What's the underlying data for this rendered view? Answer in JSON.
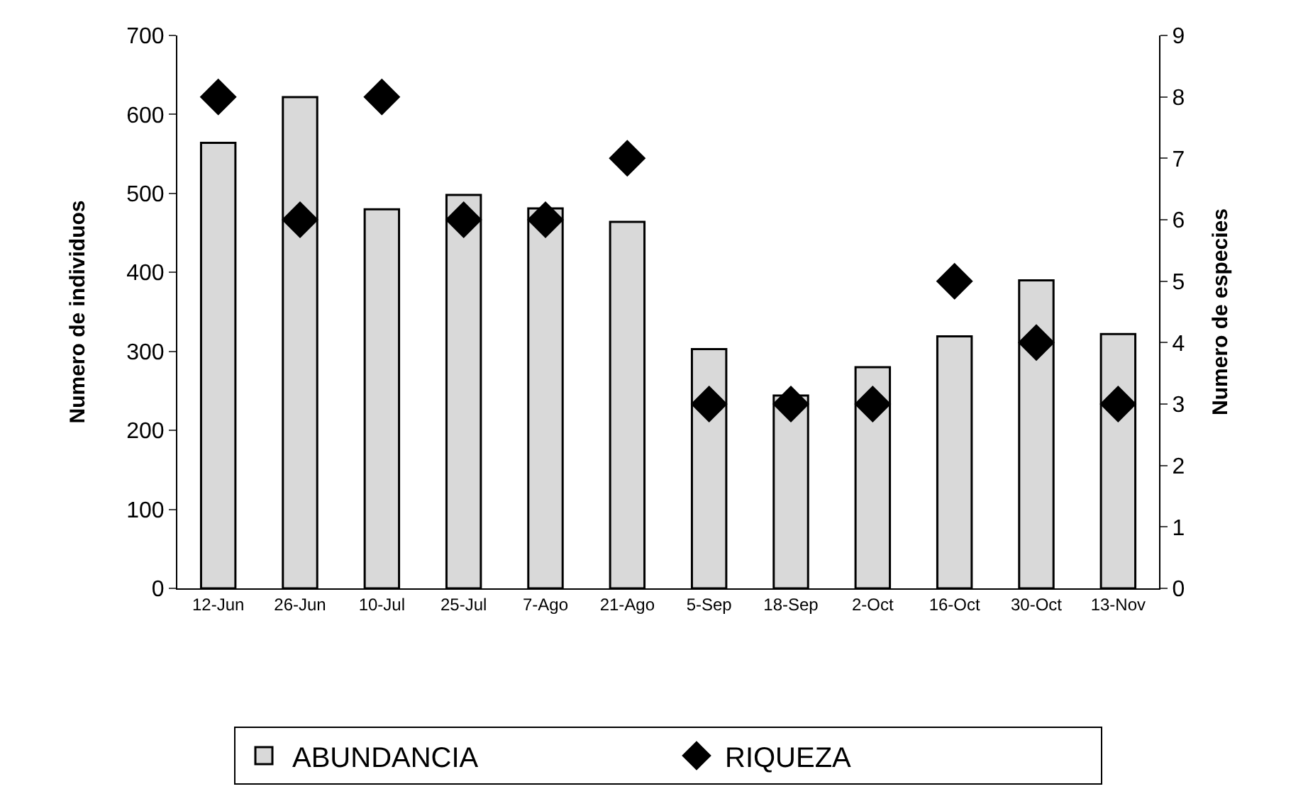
{
  "chart_data": {
    "type": "bar",
    "ylabel": "Numero de individuos",
    "y2label": "Numero de especies",
    "categories": [
      "12-Jun",
      "26-Jun",
      "10-Jul",
      "25-Jul",
      "7-Ago",
      "21-Ago",
      "5-Sep",
      "18-Sep",
      "2-Oct",
      "16-Oct",
      "30-Oct",
      "13-Nov"
    ],
    "series": [
      {
        "name": "ABUNDANCIA",
        "color": "#d9d9d9",
        "values": [
          564,
          622,
          480,
          498,
          481,
          464,
          303,
          244,
          280,
          319,
          390,
          322
        ]
      },
      {
        "name": "RIQUEZA",
        "type": "scatter",
        "axis": "y2",
        "color": "#000000",
        "marker": "diamond",
        "values": [
          8,
          6,
          8,
          6,
          6,
          7,
          3,
          3,
          3,
          5,
          4,
          3
        ]
      }
    ],
    "ylim": [
      0,
      700
    ],
    "yticks": [
      0,
      100,
      200,
      300,
      400,
      500,
      600,
      700
    ],
    "y2lim": [
      0,
      9
    ],
    "y2ticks": [
      0,
      1,
      2,
      3,
      4,
      5,
      6,
      7,
      8,
      9
    ],
    "legend": "bottom"
  }
}
